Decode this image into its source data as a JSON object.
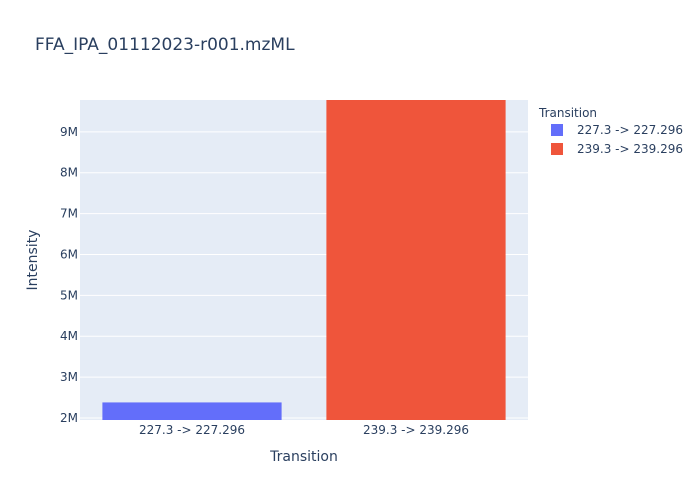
{
  "chart_data": {
    "type": "bar",
    "title": "FFA_IPA_01112023-r001.mzML",
    "xlabel": "Transition",
    "ylabel": "Intensity",
    "categories": [
      "227.3 -> 227.296",
      "239.3 -> 239.296"
    ],
    "values": [
      2380000,
      9780000
    ],
    "colors": [
      "#636efa",
      "#ef553b"
    ],
    "ylim": [
      1950000,
      9780000
    ],
    "yticks": [
      2000000,
      3000000,
      4000000,
      5000000,
      6000000,
      7000000,
      8000000,
      9000000
    ],
    "ytick_labels": [
      "2M",
      "3M",
      "4M",
      "5M",
      "6M",
      "7M",
      "8M",
      "9M"
    ],
    "grid": true,
    "legend": {
      "title": "Transition",
      "placement": "top-right",
      "entries": [
        "227.3 -> 227.296",
        "239.3 -> 239.296"
      ]
    },
    "plot_bgcolor": "#e5ecf6"
  }
}
